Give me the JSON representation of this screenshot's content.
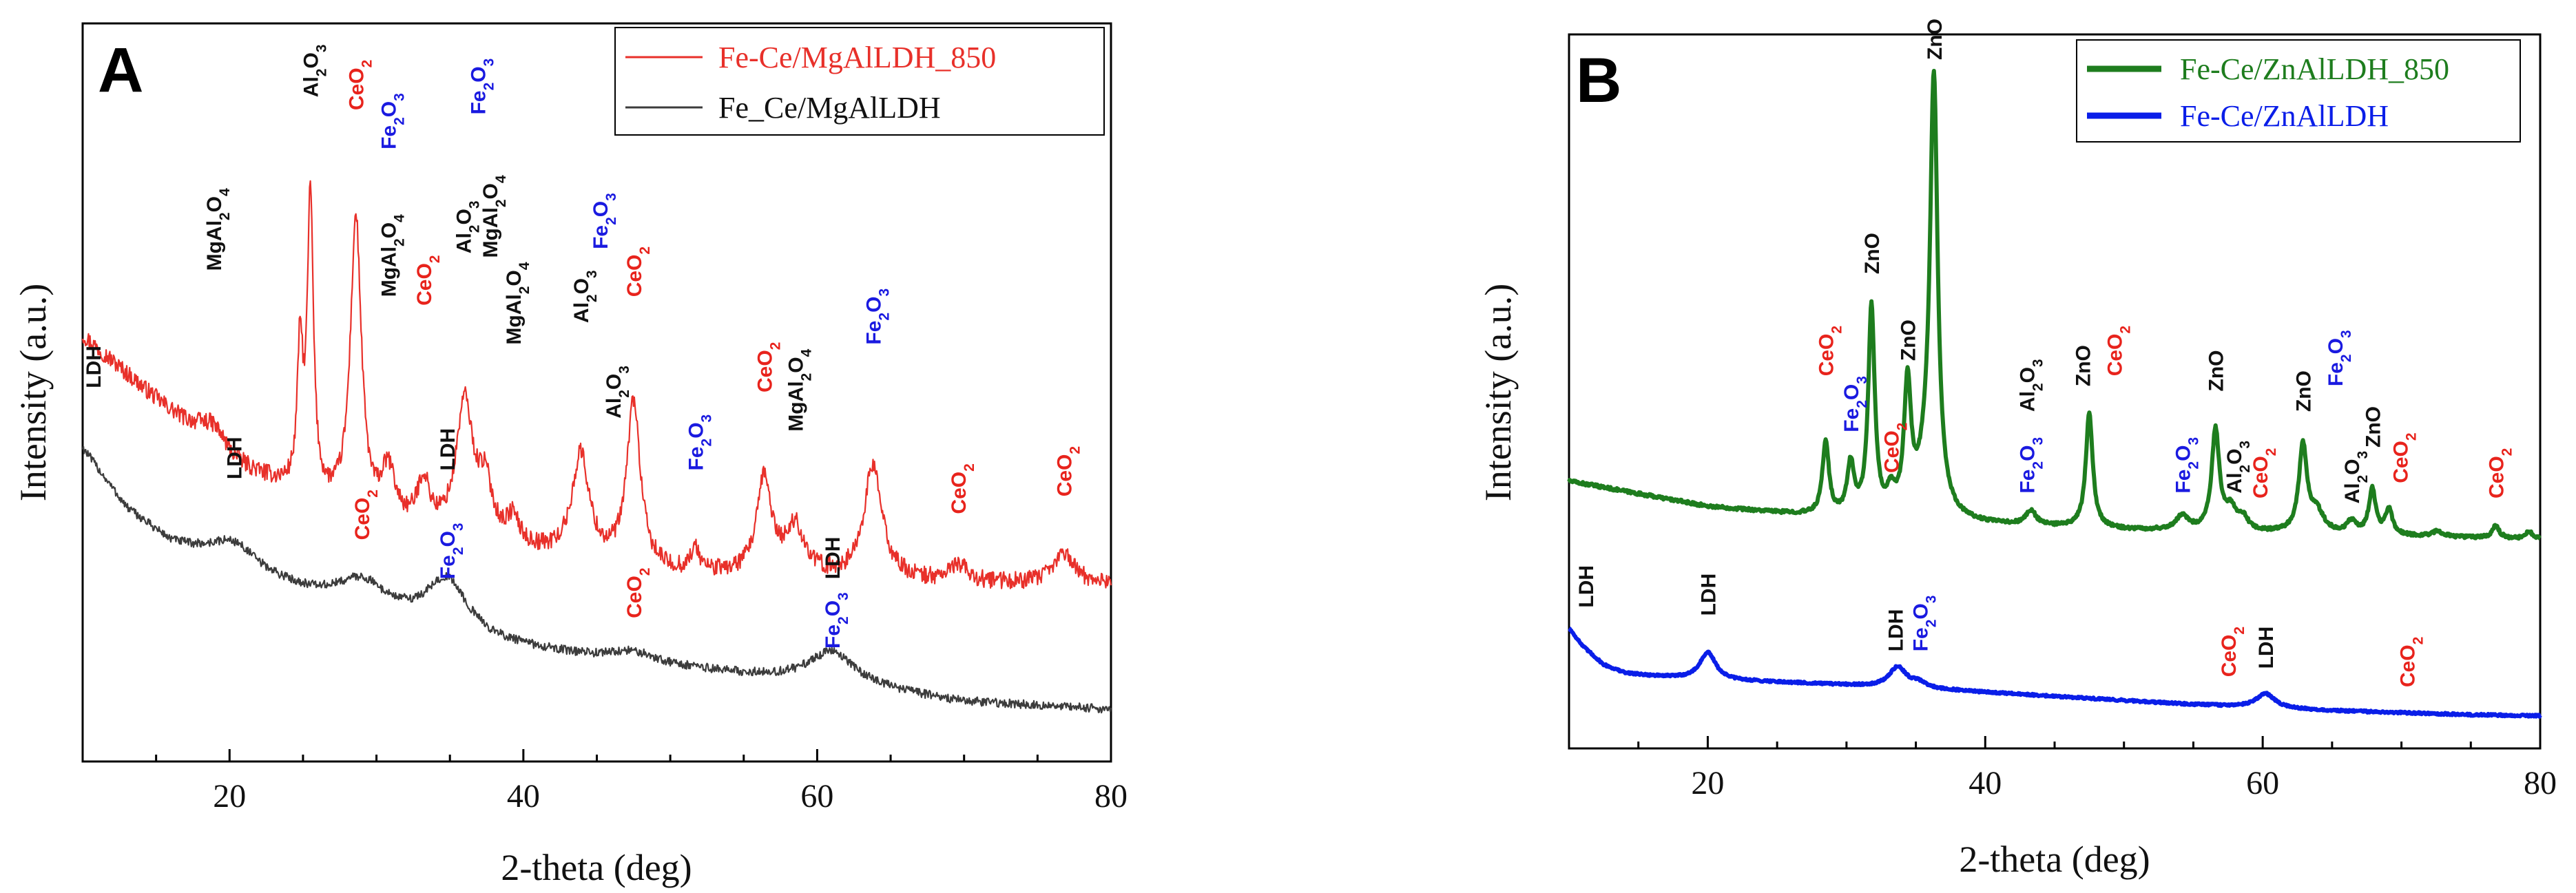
{
  "chart_data": [
    {
      "panel": "A",
      "type": "line",
      "xlabel": "2-theta (deg)",
      "ylabel": "Intensity (a.u.)",
      "xlim": [
        10,
        80
      ],
      "xticks": [
        20,
        40,
        60,
        80
      ],
      "yticks": false,
      "legend_position": "top-right",
      "series": [
        {
          "name": "Fe-Ce/MgAlLDH_850",
          "color": "#e8302a",
          "legend_index": 0,
          "baseline": [
            [
              10,
              4.4
            ],
            [
              20,
              2.9
            ],
            [
              30,
              2.2
            ],
            [
              40,
              1.9
            ],
            [
              50,
              1.65
            ],
            [
              60,
              1.6
            ],
            [
              70,
              1.55
            ],
            [
              80,
              1.55
            ]
          ],
          "peaks": [
            [
              18.9,
              0.3,
              1.3
            ],
            [
              24.8,
              1.6,
              0.22
            ],
            [
              25.5,
              3.4,
              0.25
            ],
            [
              28.6,
              3.4,
              0.45
            ],
            [
              30.8,
              0.6,
              0.6
            ],
            [
              33.2,
              0.55,
              0.5
            ],
            [
              36.0,
              1.55,
              0.7
            ],
            [
              37.4,
              0.6,
              0.6
            ],
            [
              39.3,
              0.3,
              0.5
            ],
            [
              43.9,
              1.2,
              0.7
            ],
            [
              47.5,
              1.9,
              0.55
            ],
            [
              51.7,
              0.25,
              0.4
            ],
            [
              56.4,
              1.1,
              0.6
            ],
            [
              58.5,
              0.55,
              0.8
            ],
            [
              63.8,
              1.3,
              0.75
            ],
            [
              69.6,
              0.2,
              0.7
            ],
            [
              76.8,
              0.35,
              0.8
            ]
          ],
          "noise": 0.1
        },
        {
          "name": "Fe_Ce/MgAlLDH",
          "color": "#3c3c3c",
          "legend_index": 1,
          "baseline": [
            [
              10,
              3.1
            ],
            [
              13,
              2.4
            ],
            [
              16,
              2.0
            ],
            [
              19,
              1.8
            ],
            [
              22,
              1.6
            ],
            [
              26,
              1.38
            ],
            [
              30,
              1.2
            ],
            [
              34,
              1.02
            ],
            [
              38,
              0.85
            ],
            [
              44,
              0.7
            ],
            [
              50,
              0.58
            ],
            [
              56,
              0.47
            ],
            [
              62,
              0.36
            ],
            [
              70,
              0.18
            ],
            [
              80,
              0.1
            ]
          ],
          "peaks": [
            [
              20.3,
              0.3,
              2.0
            ],
            [
              29.0,
              0.32,
              2.0
            ],
            [
              34.8,
              0.6,
              1.7
            ],
            [
              47.5,
              0.12,
              2.0
            ],
            [
              61.0,
              0.38,
              2.0
            ]
          ],
          "noise": 0.05
        }
      ],
      "ylim": [
        -0.5,
        8.0
      ],
      "annotations": [
        {
          "text": "MgAl2O4",
          "x": 18.9,
          "y": 5.15,
          "color": "black"
        },
        {
          "text": "Al2O3",
          "x": 25.5,
          "y": 7.15,
          "color": "black"
        },
        {
          "text": "CeO2",
          "x": 28.6,
          "y": 7.0,
          "color": "red"
        },
        {
          "text": "Fe2O3",
          "x": 30.8,
          "y": 6.55,
          "color": "blue"
        },
        {
          "text": "MgAl2O4",
          "x": 30.8,
          "y": 4.85,
          "color": "black"
        },
        {
          "text": "CeO2",
          "x": 33.2,
          "y": 4.75,
          "color": "red"
        },
        {
          "text": "Al2O3",
          "x": 35.9,
          "y": 5.35,
          "color": "black"
        },
        {
          "text": "Fe2O3",
          "x": 36.9,
          "y": 6.95,
          "color": "blue"
        },
        {
          "text": "MgAl2O4",
          "x": 37.7,
          "y": 5.3,
          "color": "black"
        },
        {
          "text": "MgAl2O4",
          "x": 39.3,
          "y": 4.3,
          "color": "black"
        },
        {
          "text": "Al2O3",
          "x": 43.9,
          "y": 4.55,
          "color": "black"
        },
        {
          "text": "Fe2O3",
          "x": 45.2,
          "y": 5.4,
          "color": "blue"
        },
        {
          "text": "Al2O3",
          "x": 46.1,
          "y": 3.45,
          "color": "black"
        },
        {
          "text": "CeO2",
          "x": 47.5,
          "y": 4.85,
          "color": "red"
        },
        {
          "text": "Fe2O3",
          "x": 51.7,
          "y": 2.85,
          "color": "blue"
        },
        {
          "text": "CeO2",
          "x": 56.4,
          "y": 3.75,
          "color": "red"
        },
        {
          "text": "MgAl2O4",
          "x": 58.5,
          "y": 3.3,
          "color": "black"
        },
        {
          "text": "Fe2O3",
          "x": 63.8,
          "y": 4.3,
          "color": "blue"
        },
        {
          "text": "CeO2",
          "x": 69.6,
          "y": 2.35,
          "color": "red"
        },
        {
          "text": "CeO2",
          "x": 76.8,
          "y": 2.55,
          "color": "red"
        },
        {
          "text": "LDH",
          "x": 10.7,
          "y": 3.8,
          "color": "black"
        },
        {
          "text": "LDH",
          "x": 20.3,
          "y": 2.75,
          "color": "black"
        },
        {
          "text": "CeO2",
          "x": 29.0,
          "y": 2.05,
          "color": "red"
        },
        {
          "text": "LDH",
          "x": 34.8,
          "y": 2.85,
          "color": "black"
        },
        {
          "text": "Fe2O3",
          "x": 34.8,
          "y": 1.6,
          "color": "blue"
        },
        {
          "text": "CeO2",
          "x": 47.5,
          "y": 1.15,
          "color": "red"
        },
        {
          "text": "LDH",
          "x": 61.0,
          "y": 1.6,
          "color": "black"
        },
        {
          "text": "Fe2O3",
          "x": 61.0,
          "y": 0.8,
          "color": "blue"
        }
      ]
    },
    {
      "panel": "B",
      "type": "line",
      "xlabel": "2-theta (deg)",
      "ylabel": "Intensity (a.u.)",
      "xlim": [
        10,
        80
      ],
      "xticks": [
        20,
        40,
        60,
        80
      ],
      "yticks": false,
      "legend_position": "top-right",
      "series": [
        {
          "name": "Fe-Ce/ZnAlLDH_850",
          "color": "#1e7d1e",
          "legend_index": 0,
          "baseline": [
            [
              10,
              2.42
            ],
            [
              20,
              2.17
            ],
            [
              28,
              2.07
            ],
            [
              30,
              2.05
            ],
            [
              40,
              1.99
            ],
            [
              50,
              1.94
            ],
            [
              60,
              1.91
            ],
            [
              70,
              1.88
            ],
            [
              80,
              1.85
            ]
          ],
          "peaks": [
            [
              28.5,
              0.72,
              0.28
            ],
            [
              30.3,
              0.5,
              0.3
            ],
            [
              31.8,
              2.05,
              0.28
            ],
            [
              33.2,
              0.2,
              0.3
            ],
            [
              34.4,
              1.25,
              0.3
            ],
            [
              35.9,
              0.5,
              0.8
            ],
            [
              36.3,
              4.0,
              0.32
            ],
            [
              43.3,
              0.14,
              0.45
            ],
            [
              47.5,
              1.12,
              0.3
            ],
            [
              54.2,
              0.14,
              0.55
            ],
            [
              56.6,
              0.98,
              0.33
            ],
            [
              57.7,
              0.2,
              0.5
            ],
            [
              58.6,
              0.12,
              0.4
            ],
            [
              62.9,
              0.85,
              0.35
            ],
            [
              63.9,
              0.2,
              0.6
            ],
            [
              66.4,
              0.12,
              0.4
            ],
            [
              67.9,
              0.44,
              0.3
            ],
            [
              69.1,
              0.25,
              0.3
            ],
            [
              72.6,
              0.05,
              0.5
            ],
            [
              76.8,
              0.12,
              0.3
            ],
            [
              79.2,
              0.07,
              0.3
            ]
          ],
          "noise": 0.015
        },
        {
          "name": "Fe-Ce/ZnAlLDH",
          "color": "#0a1ee8",
          "legend_index": 1,
          "baseline": [
            [
              10,
              0.98
            ],
            [
              11,
              0.8
            ],
            [
              12.5,
              0.62
            ],
            [
              14,
              0.54
            ],
            [
              16,
              0.51
            ],
            [
              20,
              0.47
            ],
            [
              25,
              0.45
            ],
            [
              30,
              0.42
            ],
            [
              35,
              0.39
            ],
            [
              40,
              0.35
            ],
            [
              45,
              0.31
            ],
            [
              50,
              0.27
            ],
            [
              55,
              0.23
            ],
            [
              60,
              0.2
            ],
            [
              65,
              0.17
            ],
            [
              70,
              0.15
            ],
            [
              75,
              0.13
            ],
            [
              80,
              0.12
            ]
          ],
          "peaks": [
            [
              20.0,
              0.27,
              0.7
            ],
            [
              33.7,
              0.2,
              0.75
            ],
            [
              35.2,
              0.05,
              0.6
            ],
            [
              60.2,
              0.14,
              0.8
            ]
          ],
          "noise": 0.01
        }
      ],
      "ylim": [
        -0.2,
        6.8
      ],
      "annotations": [
        {
          "text": "CeO2",
          "x": 28.5,
          "y": 3.45,
          "color": "red"
        },
        {
          "text": "Fe2O3",
          "x": 30.3,
          "y": 2.9,
          "color": "blue"
        },
        {
          "text": "ZnO",
          "x": 31.8,
          "y": 4.45,
          "color": "black"
        },
        {
          "text": "CeO2",
          "x": 33.2,
          "y": 2.5,
          "color": "red"
        },
        {
          "text": "ZnO",
          "x": 34.4,
          "y": 3.6,
          "color": "black"
        },
        {
          "text": "ZnO",
          "x": 36.3,
          "y": 6.55,
          "color": "black"
        },
        {
          "text": "Al2O3",
          "x": 43.0,
          "y": 3.1,
          "color": "black"
        },
        {
          "text": "Fe2O3",
          "x": 43.0,
          "y": 2.3,
          "color": "blue"
        },
        {
          "text": "ZnO",
          "x": 47.0,
          "y": 3.35,
          "color": "black"
        },
        {
          "text": "CeO2",
          "x": 49.3,
          "y": 3.45,
          "color": "red"
        },
        {
          "text": "Fe2O3",
          "x": 54.2,
          "y": 2.3,
          "color": "blue"
        },
        {
          "text": "ZnO",
          "x": 56.6,
          "y": 3.3,
          "color": "black"
        },
        {
          "text": "Al2O3",
          "x": 57.9,
          "y": 2.3,
          "color": "black"
        },
        {
          "text": "CeO2",
          "x": 59.8,
          "y": 2.25,
          "color": "red"
        },
        {
          "text": "ZnO",
          "x": 62.9,
          "y": 3.1,
          "color": "black"
        },
        {
          "text": "Fe2O3",
          "x": 65.2,
          "y": 3.35,
          "color": "blue"
        },
        {
          "text": "Al2O3",
          "x": 66.4,
          "y": 2.2,
          "color": "black"
        },
        {
          "text": "ZnO",
          "x": 67.9,
          "y": 2.75,
          "color": "black"
        },
        {
          "text": "CeO2",
          "x": 69.9,
          "y": 2.4,
          "color": "red"
        },
        {
          "text": "CeO2",
          "x": 76.8,
          "y": 2.25,
          "color": "red"
        },
        {
          "text": "LDH",
          "x": 11.2,
          "y": 1.18,
          "color": "black"
        },
        {
          "text": "LDH",
          "x": 20.0,
          "y": 1.1,
          "color": "black"
        },
        {
          "text": "LDH",
          "x": 33.5,
          "y": 0.75,
          "color": "black"
        },
        {
          "text": "Fe2O3",
          "x": 35.3,
          "y": 0.75,
          "color": "blue"
        },
        {
          "text": "CeO2",
          "x": 57.5,
          "y": 0.5,
          "color": "red"
        },
        {
          "text": "LDH",
          "x": 60.2,
          "y": 0.58,
          "color": "black"
        },
        {
          "text": "CeO2",
          "x": 70.4,
          "y": 0.4,
          "color": "red"
        }
      ]
    }
  ]
}
